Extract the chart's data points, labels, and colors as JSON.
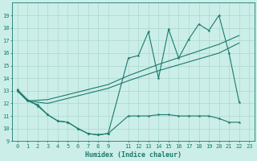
{
  "xlabel": "Humidex (Indice chaleur)",
  "bg_color": "#cceee8",
  "grid_color": "#aad8d0",
  "line_color": "#1a7a6e",
  "xlim": [
    -0.5,
    23.5
  ],
  "ylim": [
    9,
    20
  ],
  "yticks": [
    9,
    10,
    11,
    12,
    13,
    14,
    15,
    16,
    17,
    18,
    19
  ],
  "xticks": [
    0,
    1,
    2,
    3,
    4,
    5,
    6,
    7,
    8,
    9,
    11,
    12,
    13,
    14,
    15,
    16,
    17,
    18,
    19,
    20,
    21,
    22,
    23
  ],
  "line1_x": [
    0,
    1,
    2,
    3,
    4,
    5,
    6,
    7,
    8,
    9,
    11,
    12,
    13,
    14,
    15,
    16,
    17,
    18,
    19,
    20,
    21,
    22
  ],
  "line1_y": [
    13.1,
    12.3,
    11.8,
    11.1,
    10.6,
    10.5,
    10.0,
    9.6,
    9.5,
    9.6,
    15.6,
    15.8,
    17.7,
    14.0,
    17.9,
    15.6,
    17.1,
    18.3,
    17.8,
    19.0,
    16.0,
    12.1
  ],
  "line2_x": [
    0,
    1,
    3,
    6,
    9,
    11,
    14,
    17,
    20,
    22
  ],
  "line2_y": [
    13.0,
    12.2,
    12.3,
    12.9,
    13.5,
    14.2,
    15.1,
    15.9,
    16.7,
    17.4
  ],
  "line3_x": [
    0,
    1,
    3,
    6,
    9,
    11,
    14,
    17,
    20,
    22
  ],
  "line3_y": [
    13.0,
    12.2,
    12.0,
    12.6,
    13.2,
    13.8,
    14.6,
    15.3,
    16.0,
    16.8
  ],
  "line4_x": [
    0,
    1,
    2,
    3,
    4,
    5,
    6,
    7,
    8,
    9,
    11,
    12,
    13,
    14,
    15,
    16,
    17,
    18,
    19,
    20,
    21,
    22
  ],
  "line4_y": [
    13.0,
    12.2,
    11.9,
    11.1,
    10.6,
    10.5,
    10.0,
    9.6,
    9.5,
    9.6,
    11.0,
    11.0,
    11.0,
    11.1,
    11.1,
    11.0,
    11.0,
    11.0,
    11.0,
    10.8,
    10.5,
    10.5
  ]
}
